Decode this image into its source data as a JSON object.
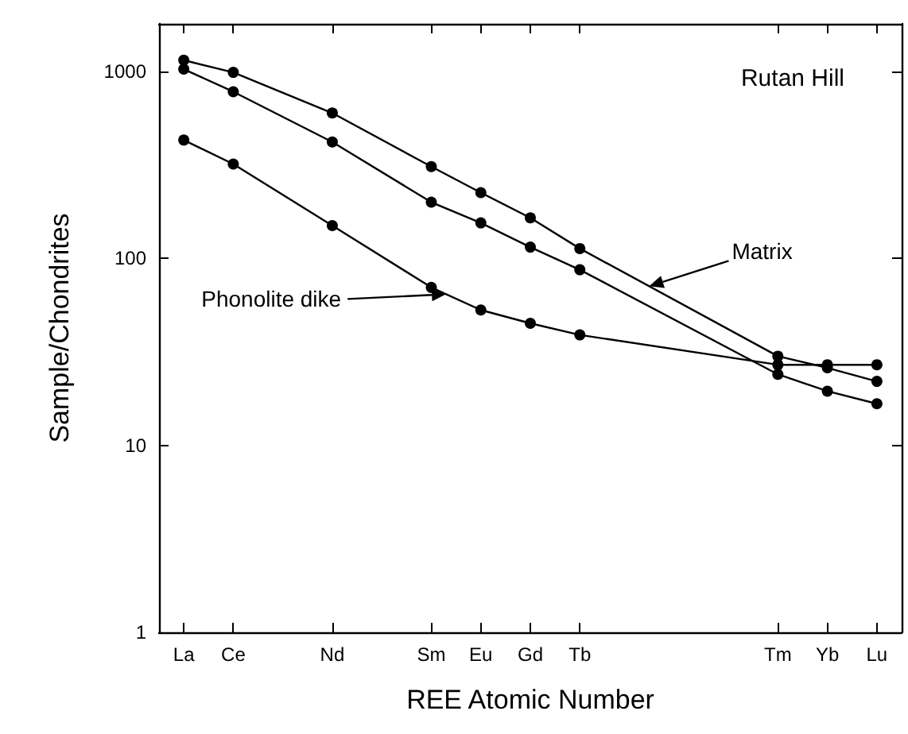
{
  "chart_data": {
    "type": "line",
    "xlabel": "REE Atomic Number",
    "ylabel": "Sample/Chondrites",
    "categories": [
      "La",
      "Ce",
      null,
      "Nd",
      null,
      "Sm",
      "Eu",
      "Gd",
      "Tb",
      null,
      null,
      null,
      "Tm",
      "Yb",
      "Lu"
    ],
    "series": [
      {
        "color": "#000000",
        "values": [
          1150,
          990,
          null,
          600,
          null,
          310,
          225,
          165,
          113,
          null,
          null,
          null,
          30,
          26,
          22
        ]
      },
      {
        "color": "#000000",
        "values": [
          1030,
          780,
          null,
          420,
          null,
          200,
          155,
          115,
          87,
          null,
          null,
          null,
          24,
          19.5,
          16.7
        ]
      },
      {
        "color": "#000000",
        "values": [
          430,
          320,
          null,
          150,
          null,
          70,
          53,
          45,
          39,
          null,
          null,
          null,
          27,
          27,
          27
        ]
      }
    ],
    "ylim": [
      1,
      1800
    ],
    "yticks": [
      1,
      10,
      100,
      1000
    ],
    "log": true,
    "marker": "circle",
    "line_style": "solid",
    "grid": false,
    "annotations": [
      "Rutan Hill",
      "Matrix",
      "Phonolite dike"
    ]
  }
}
